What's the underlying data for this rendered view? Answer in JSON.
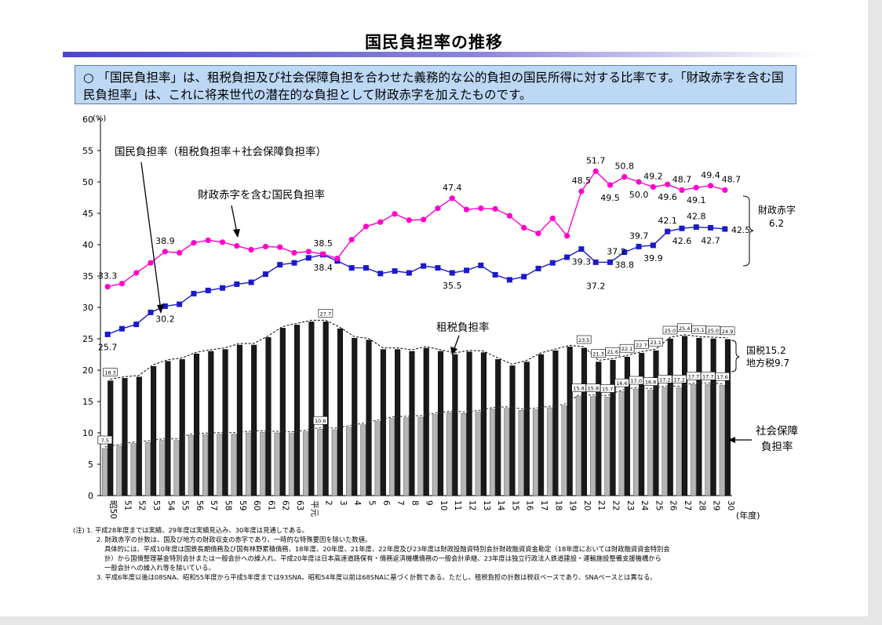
{
  "title": "国民負担率の推移",
  "description": "○ 「国民負担率」は、租税負担及び社会保障負担を合わせた義務的な公的負担の国民所得に対する比率です。「財政赤字を含む国民負担率」は、これに将来世代の潜在的な負担として財政赤字を加えたものです。",
  "notes": [
    "(注) 1. 平成28年度までは実績、29年度は実績見込み、30年度は見通しである。",
    "2. 財政赤字の計数は、国及び地方の財政収支の赤字であり、一時的な特殊要因を除いた数値。",
    "具体的には、平成10年度は国鉄長期債務及び国有林野累積債務、18年度、20年度、21年度、22年度及び23年度は財政投融資特別会計財政融資資金勘定（18年度においては財政融資資金特別会",
    "計）から国債整理基金特別会計または一般会計への繰入れ、平成20年度は日本高速道路保有・債務返済機構債務の一般会計承継、23年度は独立行政法人鉄道建設・運輸施設整備支援機構から",
    "一般会計への繰入れ等を除いている。",
    "3. 平成6年度以後は08SNA、昭和55年度から平成5年度までは93SNA、昭和54年度以前は68SNAに基づく計数である。ただし、租税負担の計数は税収ベースであり、SNAベースとは異なる。"
  ],
  "chart_data": {
    "type": "bar",
    "x_unit": "(年度)",
    "y_unit": "(%)",
    "ylim": [
      0,
      60
    ],
    "yticks": [
      0,
      5,
      10,
      15,
      20,
      25,
      30,
      35,
      40,
      45,
      50,
      55,
      60
    ],
    "categories": [
      "昭50",
      "51",
      "52",
      "53",
      "54",
      "55",
      "56",
      "57",
      "58",
      "59",
      "60",
      "61",
      "62",
      "63",
      "平元",
      "2",
      "3",
      "4",
      "5",
      "6",
      "7",
      "8",
      "9",
      "10",
      "11",
      "12",
      "13",
      "14",
      "15",
      "16",
      "17",
      "18",
      "19",
      "20",
      "21",
      "22",
      "23",
      "24",
      "25",
      "26",
      "27",
      "28",
      "29",
      "30"
    ],
    "series": [
      {
        "name": "社会保障負担率",
        "kind": "bar",
        "color": "#b5b5b5",
        "values": [
          7.5,
          7.9,
          8.3,
          8.5,
          8.8,
          8.8,
          9.6,
          9.7,
          9.8,
          9.8,
          10.0,
          10.1,
          10.0,
          9.9,
          10.2,
          10.6,
          10.5,
          10.9,
          11.3,
          11.8,
          12.3,
          12.4,
          12.5,
          12.9,
          13.2,
          13.1,
          13.3,
          13.8,
          13.9,
          13.6,
          13.7,
          14.0,
          14.3,
          15.8,
          15.8,
          15.7,
          16.6,
          17.0,
          16.8,
          17.2,
          17.2,
          17.7,
          17.7,
          17.6
        ]
      },
      {
        "name": "租税負担率",
        "kind": "bar",
        "color": "#1a1a1a",
        "values": [
          18.3,
          18.7,
          18.9,
          20.6,
          21.4,
          21.7,
          22.6,
          23.0,
          23.3,
          24.0,
          24.0,
          25.2,
          26.7,
          27.2,
          27.7,
          27.7,
          26.6,
          25.1,
          24.8,
          23.3,
          23.3,
          23.0,
          23.5,
          23.0,
          22.5,
          22.9,
          22.8,
          21.7,
          20.7,
          21.3,
          22.5,
          23.1,
          23.7,
          23.5,
          21.3,
          21.6,
          22.1,
          22.7,
          23.1,
          25.0,
          25.4,
          25.1,
          25.0,
          24.9
        ]
      },
      {
        "name": "国民負担率（租税負担率＋社会保障負担率）",
        "kind": "line",
        "color": "#1a1acc",
        "values": [
          25.7,
          26.6,
          27.3,
          29.2,
          30.2,
          30.5,
          32.2,
          32.7,
          33.1,
          33.7,
          34.0,
          35.3,
          36.8,
          37.1,
          37.9,
          38.4,
          37.4,
          36.3,
          36.3,
          35.4,
          35.8,
          35.5,
          36.6,
          36.3,
          35.5,
          35.9,
          36.7,
          35.2,
          34.4,
          34.9,
          36.2,
          37.1,
          38.0,
          39.3,
          37.2,
          37.2,
          38.8,
          39.7,
          39.9,
          42.1,
          42.6,
          42.8,
          42.7,
          42.5
        ]
      },
      {
        "name": "財政赤字を含む国民負担率",
        "kind": "line",
        "color": "#ff00cc",
        "values": [
          33.3,
          33.8,
          35.5,
          37.1,
          38.9,
          38.7,
          40.3,
          40.7,
          40.4,
          39.8,
          39.2,
          39.7,
          39.6,
          38.7,
          38.9,
          38.5,
          37.8,
          40.8,
          42.9,
          43.6,
          44.9,
          43.9,
          44.0,
          45.8,
          47.4,
          45.6,
          45.8,
          45.7,
          44.6,
          42.7,
          41.8,
          44.2,
          41.4,
          48.5,
          51.7,
          49.5,
          50.8,
          50.0,
          49.2,
          49.6,
          48.7,
          49.1,
          49.4,
          48.7
        ]
      }
    ],
    "point_labels": {
      "財政赤字を含む国民負担率": [
        {
          "i": 0,
          "text": "33.3",
          "pos": "above"
        },
        {
          "i": 4,
          "text": "38.9",
          "pos": "above"
        },
        {
          "i": 15,
          "text": "38.5",
          "pos": "above"
        },
        {
          "i": 24,
          "text": "47.4",
          "pos": "above"
        },
        {
          "i": 33,
          "text": "48.5",
          "pos": "above"
        },
        {
          "i": 34,
          "text": "51.7",
          "pos": "above"
        },
        {
          "i": 35,
          "text": "49.5",
          "pos": "below"
        },
        {
          "i": 36,
          "text": "50.8",
          "pos": "above"
        },
        {
          "i": 37,
          "text": "50.0",
          "pos": "below"
        },
        {
          "i": 38,
          "text": "49.2",
          "pos": "above"
        },
        {
          "i": 39,
          "text": "49.6",
          "pos": "below"
        },
        {
          "i": 40,
          "text": "48.7",
          "pos": "above"
        },
        {
          "i": 41,
          "text": "49.1",
          "pos": "below"
        },
        {
          "i": 42,
          "text": "49.4",
          "pos": "above"
        },
        {
          "i": 43,
          "text": "48.7",
          "pos": "aboveright"
        }
      ],
      "国民負担率（租税負担率＋社会保障負担率）": [
        {
          "i": 0,
          "text": "25.7",
          "pos": "below"
        },
        {
          "i": 4,
          "text": "30.2",
          "pos": "below"
        },
        {
          "i": 15,
          "text": "38.4",
          "pos": "below"
        },
        {
          "i": 24,
          "text": "35.5",
          "pos": "below"
        },
        {
          "i": 33,
          "text": "39.3",
          "pos": "below"
        },
        {
          "i": 34,
          "text": "37.2",
          "pos": "below2"
        },
        {
          "i": 35,
          "text": "37.2",
          "pos": "aboveright"
        },
        {
          "i": 36,
          "text": "38.8",
          "pos": "below"
        },
        {
          "i": 37,
          "text": "39.7",
          "pos": "above"
        },
        {
          "i": 38,
          "text": "39.9",
          "pos": "below"
        },
        {
          "i": 39,
          "text": "42.1",
          "pos": "above"
        },
        {
          "i": 40,
          "text": "42.6",
          "pos": "below"
        },
        {
          "i": 41,
          "text": "42.8",
          "pos": "above"
        },
        {
          "i": 42,
          "text": "42.7",
          "pos": "below"
        },
        {
          "i": 43,
          "text": "42.5",
          "pos": "right"
        }
      ]
    },
    "box_labels": {
      "租税負担率": [
        {
          "i": 0,
          "text": "18.3"
        },
        {
          "i": 15,
          "text": "27.7"
        },
        {
          "i": 33,
          "text": "23.5"
        },
        {
          "i": 34,
          "text": "21.3"
        },
        {
          "i": 35,
          "text": "21.6"
        },
        {
          "i": 36,
          "text": "22.1"
        },
        {
          "i": 37,
          "text": "22.7"
        },
        {
          "i": 38,
          "text": "23.1"
        },
        {
          "i": 39,
          "text": "25.0"
        },
        {
          "i": 40,
          "text": "25.4"
        },
        {
          "i": 41,
          "text": "25.1"
        },
        {
          "i": 42,
          "text": "25.0"
        },
        {
          "i": 43,
          "text": "24.9"
        }
      ],
      "社会保障負担率": [
        {
          "i": 0,
          "text": "7.5"
        },
        {
          "i": 15,
          "text": "10.6"
        },
        {
          "i": 33,
          "text": "15.8"
        },
        {
          "i": 34,
          "text": "15.8"
        },
        {
          "i": 35,
          "text": "15.7"
        },
        {
          "i": 36,
          "text": "16.6"
        },
        {
          "i": 37,
          "text": "17.0"
        },
        {
          "i": 38,
          "text": "16.8"
        },
        {
          "i": 39,
          "text": "17.2"
        },
        {
          "i": 40,
          "text": "17.2"
        },
        {
          "i": 41,
          "text": "17.7"
        },
        {
          "i": 42,
          "text": "17.7"
        },
        {
          "i": 43,
          "text": "17.6"
        }
      ]
    },
    "annotations": {
      "kokumin_label": "国民負担率（租税負担率＋社会保障負担率）",
      "deficit_label": "財政赤字を含む国民負担率",
      "tax_label": "租税負担率",
      "ss_label_1": "社会保障",
      "ss_label_2": "負担率",
      "deficit_brace_1": "財政赤字",
      "deficit_brace_2": "6.2",
      "tax_brace_1": "国税15.2",
      "tax_brace_2": "地方税9.7"
    }
  }
}
